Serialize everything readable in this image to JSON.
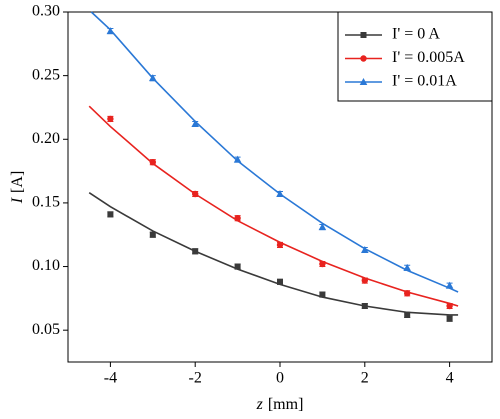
{
  "chart_data": {
    "type": "scatter",
    "xlabel": {
      "symbol": "z",
      "unit": "[mm]"
    },
    "ylabel": {
      "symbol": "I",
      "unit": "[A]"
    },
    "xlim": [
      -5,
      5
    ],
    "xticks": [
      -4,
      -2,
      0,
      2,
      4
    ],
    "ylim": [
      0.025,
      0.3
    ],
    "yticks": [
      0.05,
      {
        "value": 0.1,
        "label": "0.10"
      },
      0.15,
      {
        "value": 0.2,
        "label": "0.20"
      },
      0.25,
      {
        "value": 0.3,
        "label": "0.30"
      }
    ],
    "legend": "upper right",
    "x": [
      -4,
      -3,
      -2,
      -1,
      0,
      1,
      2,
      3,
      4
    ],
    "series": [
      {
        "name": "I' = 0 A",
        "color": "#3a3a3a",
        "marker": "square",
        "values": [
          0.141,
          0.125,
          0.112,
          0.1,
          0.088,
          0.078,
          0.069,
          0.062,
          0.059
        ],
        "errors": [
          0.002,
          0.002,
          0.002,
          0.002,
          0.002,
          0.002,
          0.002,
          0.002,
          0.002
        ],
        "fit_x": [
          -4.5,
          -4,
          -3,
          -2,
          -1,
          0,
          1,
          2,
          3,
          4,
          4.2
        ],
        "fit_values": [
          0.158,
          0.147,
          0.128,
          0.112,
          0.098,
          0.086,
          0.076,
          0.069,
          0.064,
          0.062,
          0.062
        ]
      },
      {
        "name": "I' = 0.005A",
        "color": "#e8231f",
        "marker": "circle",
        "values": [
          0.216,
          0.182,
          0.157,
          0.138,
          0.117,
          0.102,
          0.089,
          0.079,
          0.069
        ],
        "errors": [
          0.002,
          0.002,
          0.002,
          0.002,
          0.002,
          0.002,
          0.002,
          0.002,
          0.002
        ],
        "fit_x": [
          -4.5,
          -4,
          -3,
          -2,
          -1,
          0,
          1,
          2,
          3,
          4,
          4.2
        ],
        "fit_values": [
          0.226,
          0.21,
          0.181,
          0.157,
          0.136,
          0.119,
          0.104,
          0.091,
          0.08,
          0.071,
          0.069
        ]
      },
      {
        "name": "I' = 0.01A",
        "color": "#2a78d6",
        "marker": "triangle",
        "values": [
          0.285,
          0.248,
          0.212,
          0.184,
          0.157,
          0.131,
          0.113,
          0.099,
          0.085
        ],
        "errors": [
          0.002,
          0.002,
          0.002,
          0.002,
          0.002,
          0.002,
          0.002,
          0.002,
          0.002
        ],
        "fit_x": [
          -4.45,
          -4,
          -3,
          -2,
          -1,
          0,
          1,
          2,
          3,
          4,
          4.2
        ],
        "fit_values": [
          0.3,
          0.286,
          0.248,
          0.214,
          0.183,
          0.157,
          0.134,
          0.114,
          0.097,
          0.083,
          0.08
        ]
      }
    ]
  }
}
